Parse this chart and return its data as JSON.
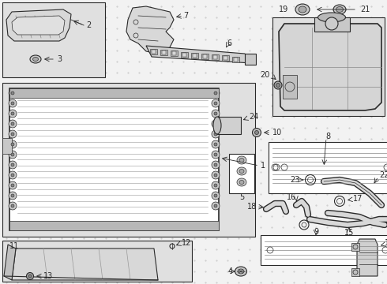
{
  "bg_color": "#f2f2f2",
  "lc": "#2a2a2a",
  "white": "#ffffff",
  "gray_light": "#e0e0e0",
  "gray_mid": "#aaaaaa",
  "figw": 4.9,
  "figh": 3.6,
  "dpi": 100
}
